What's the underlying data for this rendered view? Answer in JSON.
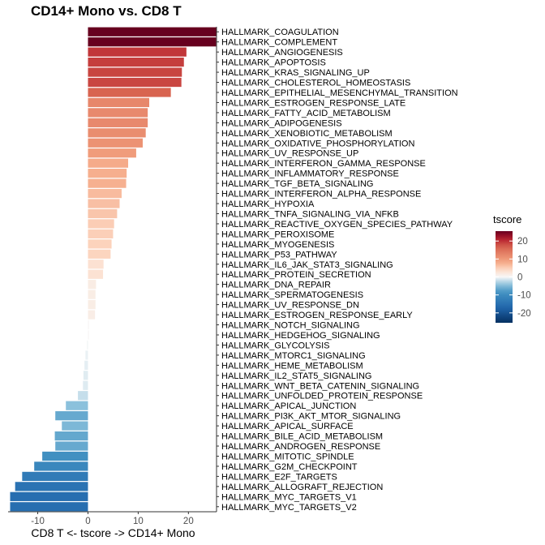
{
  "chart_data": {
    "type": "bar",
    "orientation": "horizontal",
    "title": "CD14+ Mono vs. CD8 T",
    "xlabel": "CD8 T <- tscore -> CD14+ Mono",
    "ylabel": "",
    "xlim": [
      -15.9,
      25.6
    ],
    "x_ticks": [
      -10,
      0,
      10,
      20
    ],
    "x_tick_labels": [
      "-10",
      "0",
      "10",
      "20"
    ],
    "grid": false,
    "legend": {
      "title": "tscore",
      "placement": "right",
      "range": [
        -25.5,
        25.5
      ],
      "ticks": [
        20,
        10,
        0,
        -10,
        -20
      ],
      "tick_labels": [
        "20",
        "10",
        "0",
        "-10",
        "-20"
      ],
      "colors": {
        "low": "#053061",
        "mid_low": "#4393C3",
        "mid": "#F7F7F7",
        "mid_high": "#F4A582",
        "high": "#67001F"
      }
    },
    "categories": [
      "HALLMARK_COAGULATION",
      "HALLMARK_COMPLEMENT",
      "HALLMARK_ANGIOGENESIS",
      "HALLMARK_APOPTOSIS",
      "HALLMARK_KRAS_SIGNALING_UP",
      "HALLMARK_CHOLESTEROL_HOMEOSTASIS",
      "HALLMARK_EPITHELIAL_MESENCHYMAL_TRANSITION",
      "HALLMARK_ESTROGEN_RESPONSE_LATE",
      "HALLMARK_FATTY_ACID_METABOLISM",
      "HALLMARK_ADIPOGENESIS",
      "HALLMARK_XENOBIOTIC_METABOLISM",
      "HALLMARK_OXIDATIVE_PHOSPHORYLATION",
      "HALLMARK_UV_RESPONSE_UP",
      "HALLMARK_INTERFERON_GAMMA_RESPONSE",
      "HALLMARK_INFLAMMATORY_RESPONSE",
      "HALLMARK_TGF_BETA_SIGNALING",
      "HALLMARK_INTERFERON_ALPHA_RESPONSE",
      "HALLMARK_HYPOXIA",
      "HALLMARK_TNFA_SIGNALING_VIA_NFKB",
      "HALLMARK_REACTIVE_OXYGEN_SPECIES_PATHWAY",
      "HALLMARK_PEROXISOME",
      "HALLMARK_MYOGENESIS",
      "HALLMARK_P53_PATHWAY",
      "HALLMARK_IL6_JAK_STAT3_SIGNALING",
      "HALLMARK_PROTEIN_SECRETION",
      "HALLMARK_DNA_REPAIR",
      "HALLMARK_SPERMATOGENESIS",
      "HALLMARK_UV_RESPONSE_DN",
      "HALLMARK_ESTROGEN_RESPONSE_EARLY",
      "HALLMARK_NOTCH_SIGNALING",
      "HALLMARK_HEDGEHOG_SIGNALING",
      "HALLMARK_GLYCOLYSIS",
      "HALLMARK_MTORC1_SIGNALING",
      "HALLMARK_HEME_METABOLISM",
      "HALLMARK_IL2_STAT5_SIGNALING",
      "HALLMARK_WNT_BETA_CATENIN_SIGNALING",
      "HALLMARK_UNFOLDED_PROTEIN_RESPONSE",
      "HALLMARK_APICAL_JUNCTION",
      "HALLMARK_PI3K_AKT_MTOR_SIGNALING",
      "HALLMARK_APICAL_SURFACE",
      "HALLMARK_BILE_ACID_METABOLISM",
      "HALLMARK_ANDROGEN_RESPONSE",
      "HALLMARK_MITOTIC_SPINDLE",
      "HALLMARK_G2M_CHECKPOINT",
      "HALLMARK_E2F_TARGETS",
      "HALLMARK_ALLOGRAFT_REJECTION",
      "HALLMARK_MYC_TARGETS_V1",
      "HALLMARK_MYC_TARGETS_V2"
    ],
    "values": [
      25.6,
      25.5,
      19.6,
      19.1,
      18.7,
      18.6,
      16.5,
      12.2,
      11.9,
      11.9,
      11.5,
      10.9,
      9.6,
      8.0,
      7.7,
      7.6,
      6.7,
      6.3,
      5.8,
      5.2,
      5.0,
      4.7,
      4.5,
      3.1,
      3.0,
      1.6,
      1.5,
      1.5,
      1.4,
      0.2,
      0.2,
      -0.2,
      -0.5,
      -0.7,
      -0.9,
      -1.0,
      -2.0,
      -4.4,
      -6.5,
      -5.2,
      -6.6,
      -6.5,
      -9.1,
      -10.7,
      -13.1,
      -14.5,
      -15.5,
      -15.5
    ]
  }
}
